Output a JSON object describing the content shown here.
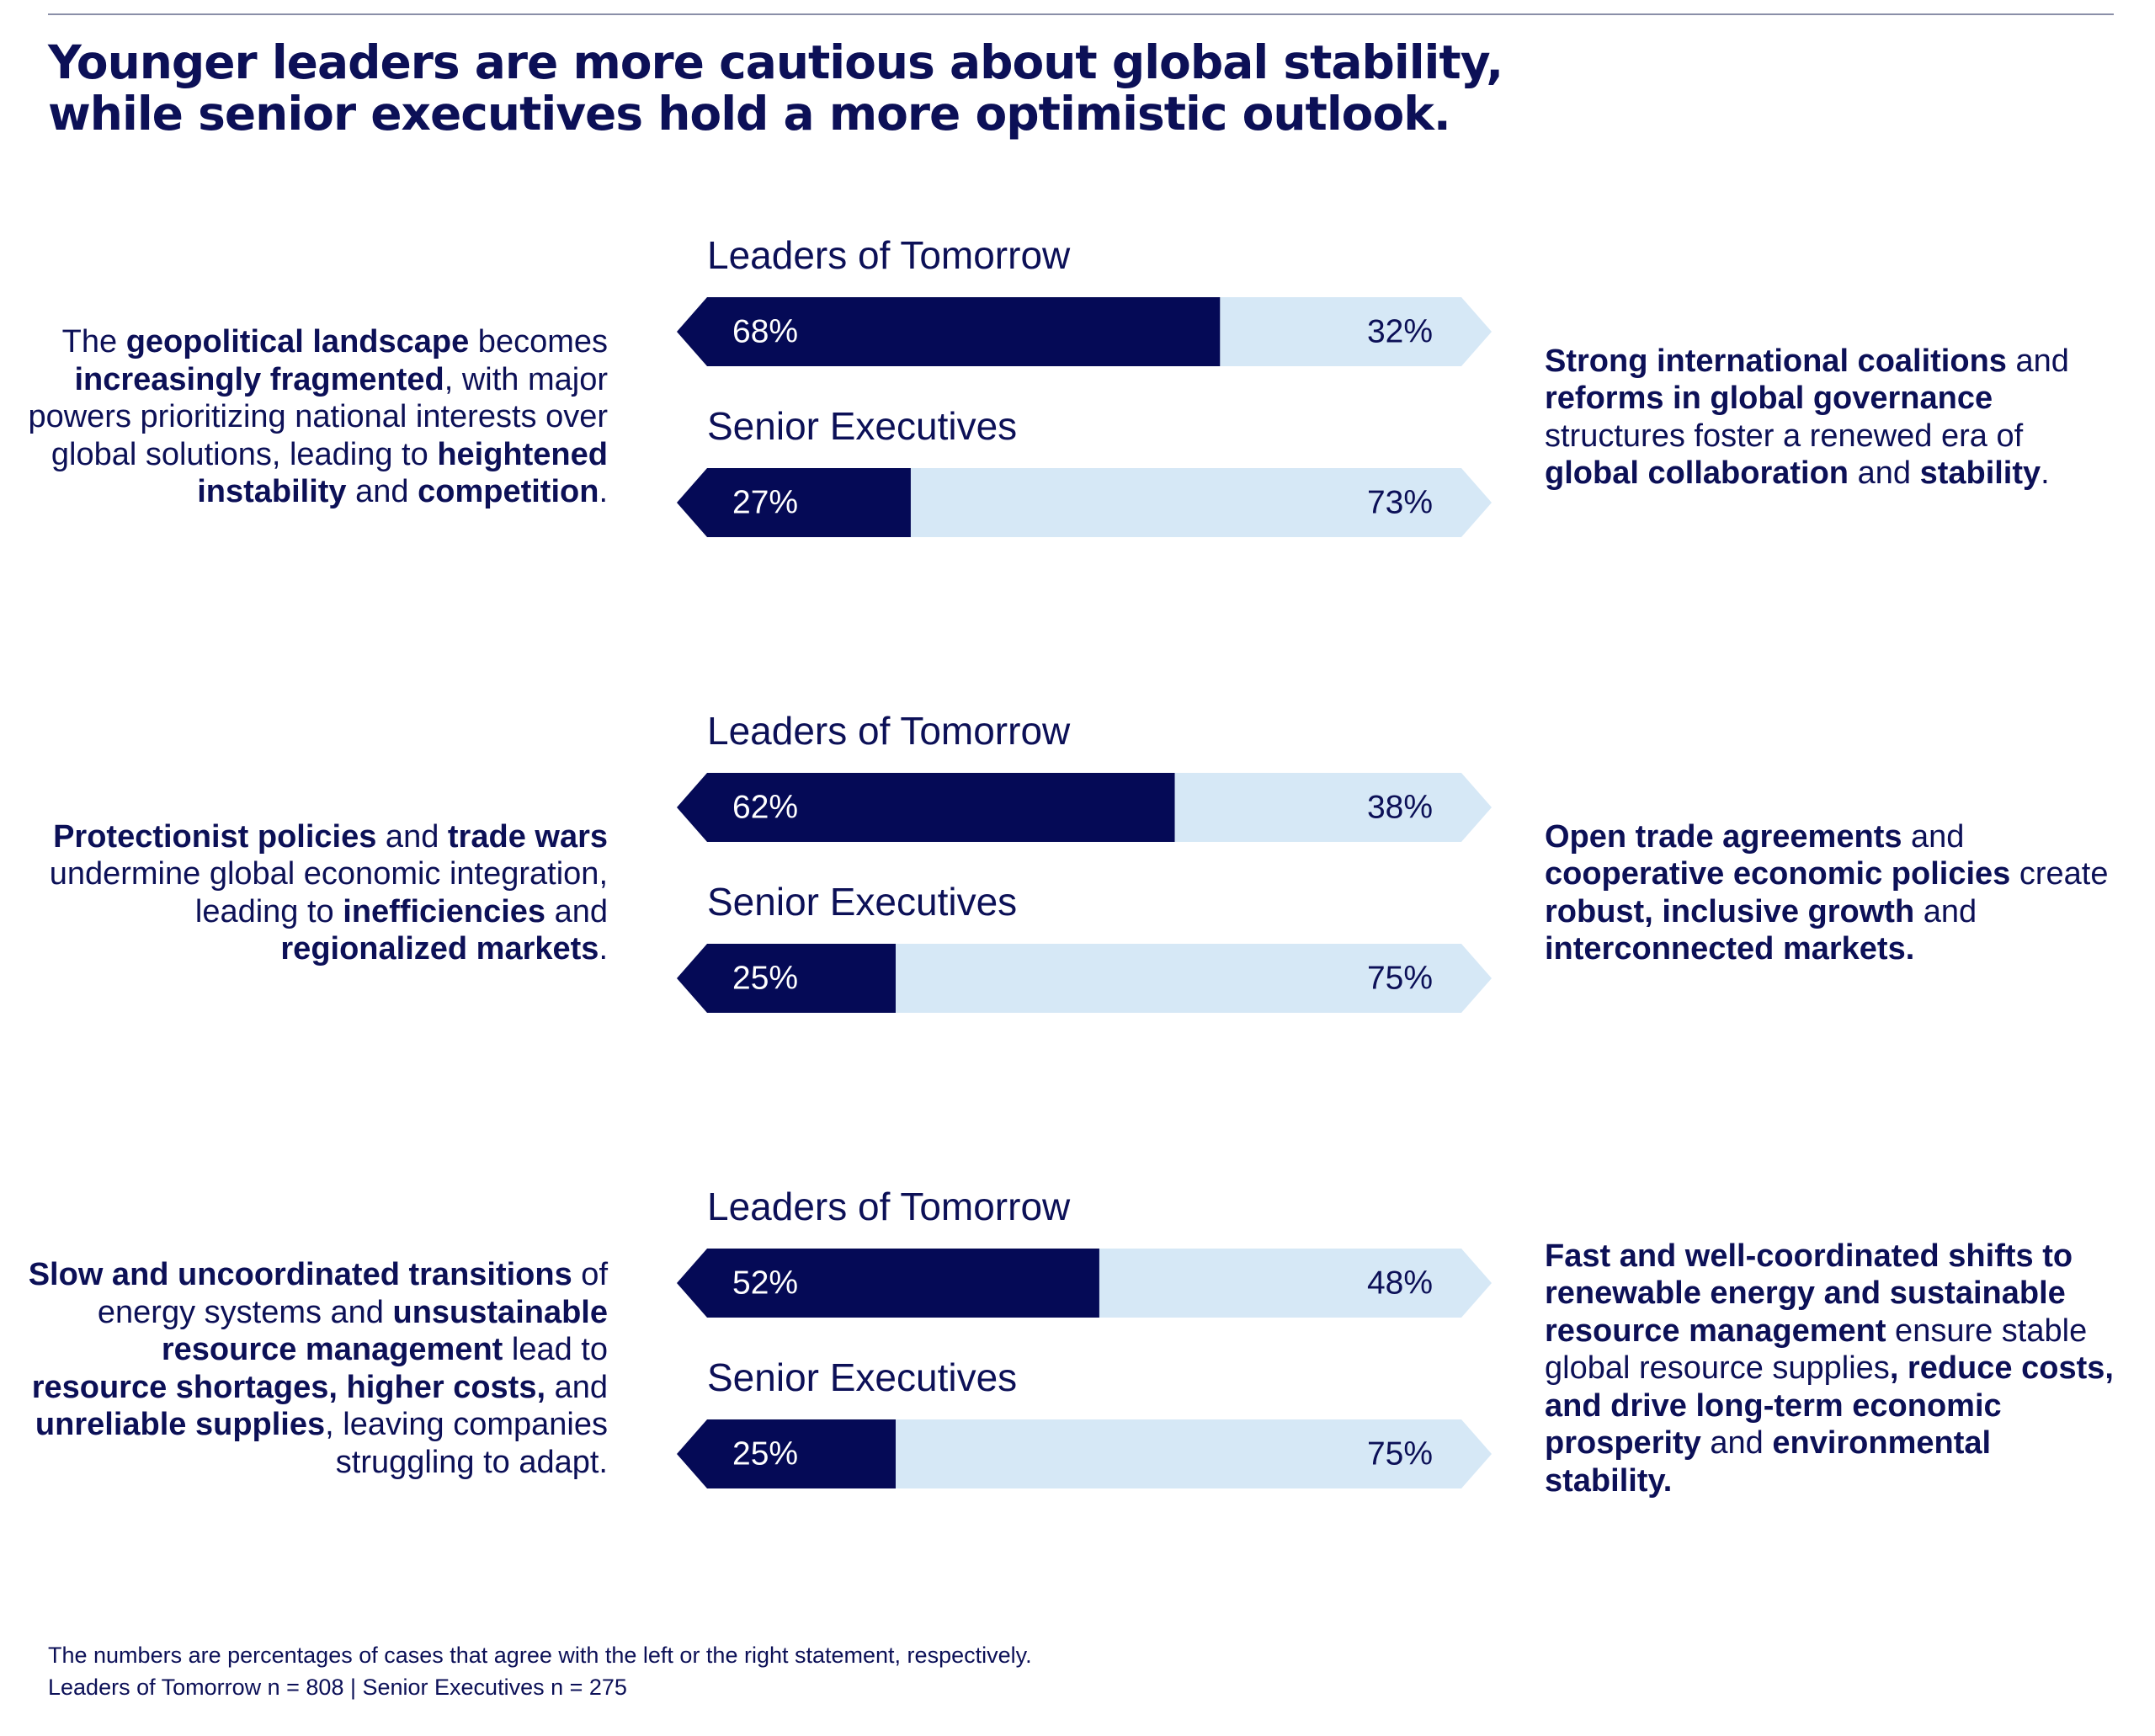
{
  "title": [
    "Younger leaders are more cautious about global stability,",
    "while senior executives hold a more optimistic outlook."
  ],
  "footnote": [
    "The numbers are percentages of cases that agree with the left or the right statement, respectively.",
    "Leaders of Tomorrow n = 808 | Senior Executives n = 275"
  ],
  "chart_data": [
    {
      "type": "bar",
      "orientation": "horizontal",
      "stacked": true,
      "xlim": [
        0,
        100
      ],
      "categories": [
        "Leaders of Tomorrow",
        "Senior Executives"
      ],
      "series": [
        {
          "color": "#050a56",
          "values": [
            68,
            27
          ],
          "value_labels": [
            "68%",
            "27%"
          ]
        },
        {
          "color": "#d6e8f6",
          "values": [
            32,
            73
          ],
          "value_labels": [
            "32%",
            "73%"
          ]
        }
      ],
      "left_statement": [
        {
          "text": "The ",
          "bold": false
        },
        {
          "text": "geopolitical landscape",
          "bold": true
        },
        {
          "text": " becomes ",
          "bold": false
        },
        {
          "text": "increasingly fragmented",
          "bold": true
        },
        {
          "text": ", with major powers prioritizing national interests over global solutions, leading to ",
          "bold": false
        },
        {
          "text": "heightened instability",
          "bold": true
        },
        {
          "text": " and ",
          "bold": false
        },
        {
          "text": "competition",
          "bold": true
        },
        {
          "text": ".",
          "bold": false
        }
      ],
      "right_statement": [
        {
          "text": "Strong international coalitions",
          "bold": true
        },
        {
          "text": " and ",
          "bold": false
        },
        {
          "text": "reforms in global governance",
          "bold": true
        },
        {
          "text": " structures foster a renewed era of ",
          "bold": false
        },
        {
          "text": "global collaboration",
          "bold": true
        },
        {
          "text": " and ",
          "bold": false
        },
        {
          "text": "stability",
          "bold": true
        },
        {
          "text": ".",
          "bold": false
        }
      ]
    },
    {
      "type": "bar",
      "orientation": "horizontal",
      "stacked": true,
      "xlim": [
        0,
        100
      ],
      "categories": [
        "Leaders of Tomorrow",
        "Senior Executives"
      ],
      "series": [
        {
          "color": "#050a56",
          "values": [
            62,
            25
          ],
          "value_labels": [
            "62%",
            "25%"
          ]
        },
        {
          "color": "#d6e8f6",
          "values": [
            38,
            75
          ],
          "value_labels": [
            "38%",
            "75%"
          ]
        }
      ],
      "left_statement": [
        {
          "text": "Protectionist policies",
          "bold": true
        },
        {
          "text": " and ",
          "bold": false
        },
        {
          "text": "trade wars",
          "bold": true
        },
        {
          "text": " undermine global economic integration, leading to ",
          "bold": false
        },
        {
          "text": "inefficiencies",
          "bold": true
        },
        {
          "text": " and ",
          "bold": false
        },
        {
          "text": "regionalized markets",
          "bold": true
        },
        {
          "text": ".",
          "bold": false
        }
      ],
      "right_statement": [
        {
          "text": "Open trade agreements",
          "bold": true
        },
        {
          "text": " and ",
          "bold": false
        },
        {
          "text": "cooperative economic policies",
          "bold": true
        },
        {
          "text": " create ",
          "bold": false
        },
        {
          "text": "robust, inclusive growth",
          "bold": true
        },
        {
          "text": " and ",
          "bold": false
        },
        {
          "text": "interconnected markets.",
          "bold": true
        }
      ]
    },
    {
      "type": "bar",
      "orientation": "horizontal",
      "stacked": true,
      "xlim": [
        0,
        100
      ],
      "categories": [
        "Leaders of Tomorrow",
        "Senior Executives"
      ],
      "series": [
        {
          "color": "#050a56",
          "values": [
            52,
            25
          ],
          "value_labels": [
            "52%",
            "25%"
          ]
        },
        {
          "color": "#d6e8f6",
          "values": [
            48,
            75
          ],
          "value_labels": [
            "48%",
            "75%"
          ]
        }
      ],
      "left_statement": [
        {
          "text": "Slow and uncoordinated transitions",
          "bold": true
        },
        {
          "text": " of energy systems and ",
          "bold": false
        },
        {
          "text": "unsustainable resource management",
          "bold": true
        },
        {
          "text": " lead to ",
          "bold": false
        },
        {
          "text": "resource shortages, higher costs,",
          "bold": true
        },
        {
          "text": " and ",
          "bold": false
        },
        {
          "text": "unreliable supplies",
          "bold": true
        },
        {
          "text": ", leaving companies struggling to adapt.",
          "bold": false
        }
      ],
      "right_statement": [
        {
          "text": "Fast and well-coordinated shifts to renewable energy and sustainable resource management",
          "bold": true
        },
        {
          "text": " ensure stable global resource supplies",
          "bold": false
        },
        {
          "text": ", reduce costs, and drive long-term economic prosperity",
          "bold": true
        },
        {
          "text": " and ",
          "bold": false
        },
        {
          "text": "environmental stability.",
          "bold": true
        }
      ]
    }
  ]
}
